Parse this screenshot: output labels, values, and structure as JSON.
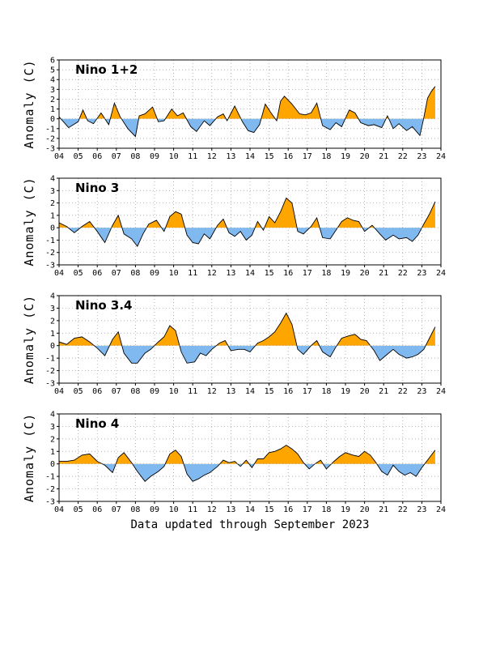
{
  "colors": {
    "positive": "#FFA500",
    "negative": "#80B8F0",
    "line": "#000000",
    "grid": "#999999"
  },
  "footer": "Data updated through September 2023",
  "chart_data": [
    {
      "type": "area",
      "title": "Nino 1+2",
      "ylabel": "Anomaly (C)",
      "ylim": [
        -3,
        6
      ],
      "yticks": [
        -3,
        -2,
        -1,
        0,
        1,
        2,
        3,
        4,
        5,
        6
      ],
      "xlim": [
        2004,
        2024
      ],
      "xtick_labels": [
        "04",
        "05",
        "06",
        "07",
        "08",
        "09",
        "10",
        "11",
        "12",
        "13",
        "14",
        "15",
        "16",
        "17",
        "18",
        "19",
        "20",
        "21",
        "22",
        "23",
        "24"
      ],
      "grid": true,
      "x": [
        2004.0,
        2004.5,
        2005.0,
        2005.25,
        2005.5,
        2005.8,
        2006.2,
        2006.6,
        2006.9,
        2007.2,
        2007.6,
        2008.0,
        2008.2,
        2008.5,
        2008.9,
        2009.2,
        2009.5,
        2009.9,
        2010.2,
        2010.5,
        2010.9,
        2011.2,
        2011.6,
        2011.9,
        2012.3,
        2012.6,
        2012.8,
        2013.2,
        2013.6,
        2013.9,
        2014.2,
        2014.5,
        2014.8,
        2015.1,
        2015.4,
        2015.6,
        2015.8,
        2016.2,
        2016.6,
        2016.9,
        2017.2,
        2017.5,
        2017.8,
        2018.2,
        2018.5,
        2018.8,
        2019.2,
        2019.5,
        2019.8,
        2020.2,
        2020.5,
        2020.9,
        2021.2,
        2021.5,
        2021.8,
        2022.2,
        2022.5,
        2022.9,
        2023.1,
        2023.3,
        2023.5,
        2023.7
      ],
      "y": [
        0.2,
        -0.9,
        -0.3,
        0.9,
        -0.2,
        -0.5,
        0.6,
        -0.6,
        1.6,
        0.2,
        -1.0,
        -1.8,
        0.3,
        0.5,
        1.2,
        -0.3,
        -0.2,
        1.0,
        0.3,
        0.6,
        -0.8,
        -1.3,
        -0.2,
        -0.7,
        0.2,
        0.5,
        -0.2,
        1.3,
        -0.3,
        -1.2,
        -1.4,
        -0.6,
        1.5,
        0.6,
        -0.2,
        1.8,
        2.3,
        1.5,
        0.5,
        0.4,
        0.6,
        1.6,
        -0.7,
        -1.1,
        -0.4,
        -0.8,
        0.9,
        0.6,
        -0.4,
        -0.7,
        -0.6,
        -0.9,
        0.3,
        -1.0,
        -0.5,
        -1.2,
        -0.8,
        -1.7,
        0.1,
        2.1,
        2.8,
        3.3
      ]
    },
    {
      "type": "area",
      "title": "Nino 3",
      "ylabel": "Anomaly (C)",
      "ylim": [
        -3,
        4
      ],
      "yticks": [
        -3,
        -2,
        -1,
        0,
        1,
        2,
        3,
        4
      ],
      "xlim": [
        2004,
        2024
      ],
      "xtick_labels": [
        "04",
        "05",
        "06",
        "07",
        "08",
        "09",
        "10",
        "11",
        "12",
        "13",
        "14",
        "15",
        "16",
        "17",
        "18",
        "19",
        "20",
        "21",
        "22",
        "23",
        "24"
      ],
      "grid": true,
      "x": [
        2004.0,
        2004.4,
        2004.8,
        2005.2,
        2005.6,
        2006.0,
        2006.4,
        2006.8,
        2007.1,
        2007.4,
        2007.8,
        2008.1,
        2008.4,
        2008.7,
        2009.1,
        2009.5,
        2009.8,
        2010.1,
        2010.4,
        2010.7,
        2011.0,
        2011.3,
        2011.6,
        2011.9,
        2012.3,
        2012.6,
        2012.9,
        2013.2,
        2013.5,
        2013.8,
        2014.1,
        2014.4,
        2014.7,
        2015.0,
        2015.3,
        2015.6,
        2015.9,
        2016.2,
        2016.5,
        2016.8,
        2017.2,
        2017.5,
        2017.8,
        2018.2,
        2018.5,
        2018.8,
        2019.1,
        2019.4,
        2019.7,
        2020.0,
        2020.4,
        2020.8,
        2021.1,
        2021.5,
        2021.8,
        2022.2,
        2022.5,
        2022.8,
        2023.1,
        2023.4,
        2023.7
      ],
      "y": [
        0.4,
        0.1,
        -0.4,
        0.1,
        0.5,
        -0.3,
        -1.2,
        0.2,
        1.0,
        -0.5,
        -0.9,
        -1.5,
        -0.5,
        0.3,
        0.6,
        -0.3,
        0.9,
        1.3,
        1.1,
        -0.6,
        -1.2,
        -1.3,
        -0.5,
        -0.9,
        0.2,
        0.7,
        -0.4,
        -0.7,
        -0.3,
        -1.0,
        -0.6,
        0.5,
        -0.2,
        0.9,
        0.4,
        1.3,
        2.4,
        2.0,
        -0.3,
        -0.5,
        0.1,
        0.8,
        -0.8,
        -0.9,
        -0.2,
        0.5,
        0.8,
        0.6,
        0.5,
        -0.3,
        0.2,
        -0.5,
        -1.0,
        -0.6,
        -0.9,
        -0.8,
        -1.1,
        -0.6,
        0.3,
        1.1,
        2.1
      ]
    },
    {
      "type": "area",
      "title": "Nino 3.4",
      "ylabel": "Anomaly (C)",
      "ylim": [
        -3,
        4
      ],
      "yticks": [
        -3,
        -2,
        -1,
        0,
        1,
        2,
        3,
        4
      ],
      "xlim": [
        2004,
        2024
      ],
      "xtick_labels": [
        "04",
        "05",
        "06",
        "07",
        "08",
        "09",
        "10",
        "11",
        "12",
        "13",
        "14",
        "15",
        "16",
        "17",
        "18",
        "19",
        "20",
        "21",
        "22",
        "23",
        "24"
      ],
      "grid": true,
      "x": [
        2004.0,
        2004.4,
        2004.8,
        2005.2,
        2005.6,
        2006.0,
        2006.4,
        2006.8,
        2007.1,
        2007.4,
        2007.8,
        2008.1,
        2008.5,
        2008.8,
        2009.2,
        2009.5,
        2009.8,
        2010.1,
        2010.4,
        2010.7,
        2011.1,
        2011.4,
        2011.7,
        2012.0,
        2012.4,
        2012.7,
        2013.0,
        2013.4,
        2013.7,
        2014.0,
        2014.4,
        2014.7,
        2015.0,
        2015.3,
        2015.6,
        2015.9,
        2016.2,
        2016.5,
        2016.8,
        2017.2,
        2017.5,
        2017.8,
        2018.2,
        2018.5,
        2018.8,
        2019.2,
        2019.5,
        2019.8,
        2020.1,
        2020.5,
        2020.8,
        2021.1,
        2021.5,
        2021.8,
        2022.2,
        2022.5,
        2022.8,
        2023.1,
        2023.4,
        2023.7
      ],
      "y": [
        0.3,
        0.1,
        0.6,
        0.7,
        0.3,
        -0.2,
        -0.8,
        0.5,
        1.1,
        -0.6,
        -1.4,
        -1.4,
        -0.6,
        -0.3,
        0.3,
        0.7,
        1.6,
        1.2,
        -0.5,
        -1.4,
        -1.3,
        -0.6,
        -0.8,
        -0.3,
        0.2,
        0.4,
        -0.4,
        -0.3,
        -0.3,
        -0.5,
        0.2,
        0.4,
        0.7,
        1.1,
        1.8,
        2.6,
        1.7,
        -0.3,
        -0.7,
        0.0,
        0.4,
        -0.5,
        -0.9,
        -0.1,
        0.6,
        0.8,
        0.9,
        0.5,
        0.4,
        -0.4,
        -1.2,
        -0.8,
        -0.3,
        -0.7,
        -1.0,
        -0.9,
        -0.7,
        -0.3,
        0.6,
        1.5
      ]
    },
    {
      "type": "area",
      "title": "Nino 4",
      "ylabel": "Anomaly (C)",
      "ylim": [
        -3,
        4
      ],
      "yticks": [
        -3,
        -2,
        -1,
        0,
        1,
        2,
        3,
        4
      ],
      "xlim": [
        2004,
        2024
      ],
      "xtick_labels": [
        "04",
        "05",
        "06",
        "07",
        "08",
        "09",
        "10",
        "11",
        "12",
        "13",
        "14",
        "15",
        "16",
        "17",
        "18",
        "19",
        "20",
        "21",
        "22",
        "23",
        "24"
      ],
      "grid": true,
      "x": [
        2004.0,
        2004.4,
        2004.8,
        2005.2,
        2005.6,
        2006.0,
        2006.4,
        2006.8,
        2007.1,
        2007.4,
        2007.8,
        2008.1,
        2008.5,
        2008.8,
        2009.2,
        2009.5,
        2009.8,
        2010.1,
        2010.4,
        2010.7,
        2011.0,
        2011.3,
        2011.6,
        2011.9,
        2012.3,
        2012.6,
        2012.9,
        2013.2,
        2013.5,
        2013.8,
        2014.1,
        2014.4,
        2014.7,
        2015.0,
        2015.3,
        2015.6,
        2015.9,
        2016.2,
        2016.5,
        2016.8,
        2017.1,
        2017.4,
        2017.7,
        2018.0,
        2018.4,
        2018.7,
        2019.0,
        2019.4,
        2019.7,
        2020.0,
        2020.3,
        2020.6,
        2020.9,
        2021.2,
        2021.5,
        2021.8,
        2022.1,
        2022.4,
        2022.7,
        2023.0,
        2023.4,
        2023.7
      ],
      "y": [
        0.2,
        0.2,
        0.3,
        0.7,
        0.8,
        0.2,
        -0.1,
        -0.7,
        0.5,
        0.9,
        0.1,
        -0.6,
        -1.4,
        -1.0,
        -0.6,
        -0.2,
        0.8,
        1.1,
        0.6,
        -0.8,
        -1.4,
        -1.2,
        -0.9,
        -0.7,
        -0.2,
        0.3,
        0.1,
        0.2,
        -0.2,
        0.3,
        -0.3,
        0.4,
        0.4,
        0.9,
        1.0,
        1.2,
        1.5,
        1.2,
        0.8,
        0.1,
        -0.4,
        0.0,
        0.3,
        -0.4,
        0.2,
        0.6,
        0.9,
        0.7,
        0.6,
        1.0,
        0.7,
        0.1,
        -0.6,
        -0.9,
        -0.1,
        -0.6,
        -0.9,
        -0.7,
        -1.0,
        -0.3,
        0.5,
        1.1
      ]
    }
  ]
}
